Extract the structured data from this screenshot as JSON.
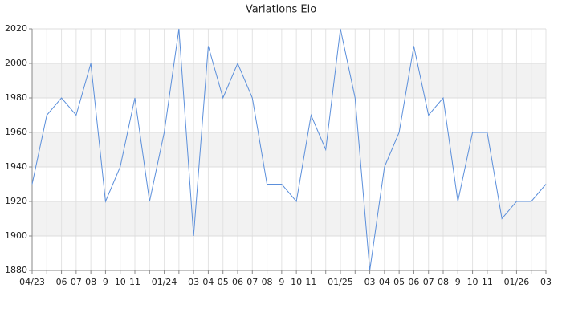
{
  "chart_data": {
    "type": "line",
    "title": "Variations Elo",
    "categories": [
      "04/23",
      null,
      "06",
      "07",
      "08",
      "9",
      "10",
      "11",
      null,
      "01/24",
      null,
      "03",
      "04",
      "05",
      "06",
      "07",
      "08",
      "9",
      "10",
      "11",
      null,
      "01/25",
      null,
      "03",
      "04",
      "05",
      "06",
      "07",
      "08",
      "9",
      "10",
      "11",
      null,
      "01/26",
      null,
      "03"
    ],
    "series": [
      {
        "name": "Elo",
        "color": "#5b8fdb",
        "values": [
          1930,
          1970,
          1980,
          1970,
          2000,
          1920,
          1940,
          1980,
          1920,
          1960,
          2020,
          1900,
          2010,
          1980,
          2000,
          1980,
          1930,
          1930,
          1920,
          1970,
          1950,
          2020,
          1980,
          1880,
          1940,
          1960,
          2010,
          1970,
          1980,
          1920,
          1960,
          1960,
          1910,
          1920,
          1920,
          1930
        ]
      }
    ],
    "ylim": [
      1880,
      2020
    ],
    "yticks": [
      1880,
      1900,
      1920,
      1940,
      1960,
      1980,
      2000,
      2020
    ],
    "grid": true
  }
}
